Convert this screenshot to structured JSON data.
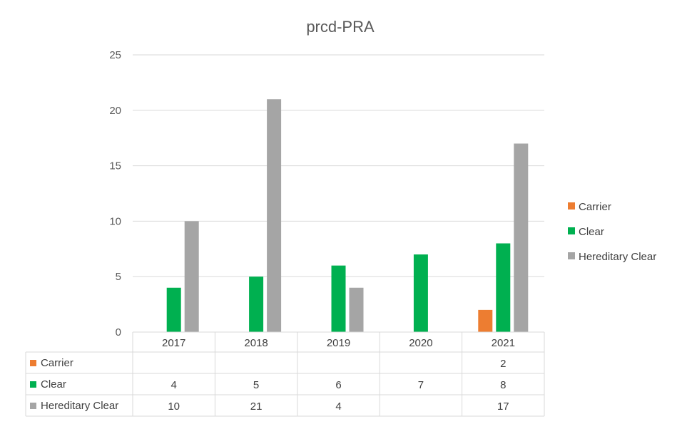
{
  "chart_data": {
    "type": "bar",
    "title": "prcd-PRA",
    "categories": [
      "2017",
      "2018",
      "2019",
      "2020",
      "2021"
    ],
    "series": [
      {
        "name": "Carrier",
        "color": "#ED7D31",
        "values": [
          null,
          null,
          null,
          null,
          2
        ]
      },
      {
        "name": "Clear",
        "color": "#00B050",
        "values": [
          4,
          5,
          6,
          7,
          8
        ]
      },
      {
        "name": "Hereditary Clear",
        "color": "#A5A5A5",
        "values": [
          10,
          21,
          4,
          null,
          17
        ]
      }
    ],
    "yticks": [
      "0",
      "5",
      "10",
      "15",
      "20",
      "25"
    ],
    "ylim": [
      0,
      25
    ],
    "grid": true,
    "legend_position": "right",
    "data_table": true
  }
}
